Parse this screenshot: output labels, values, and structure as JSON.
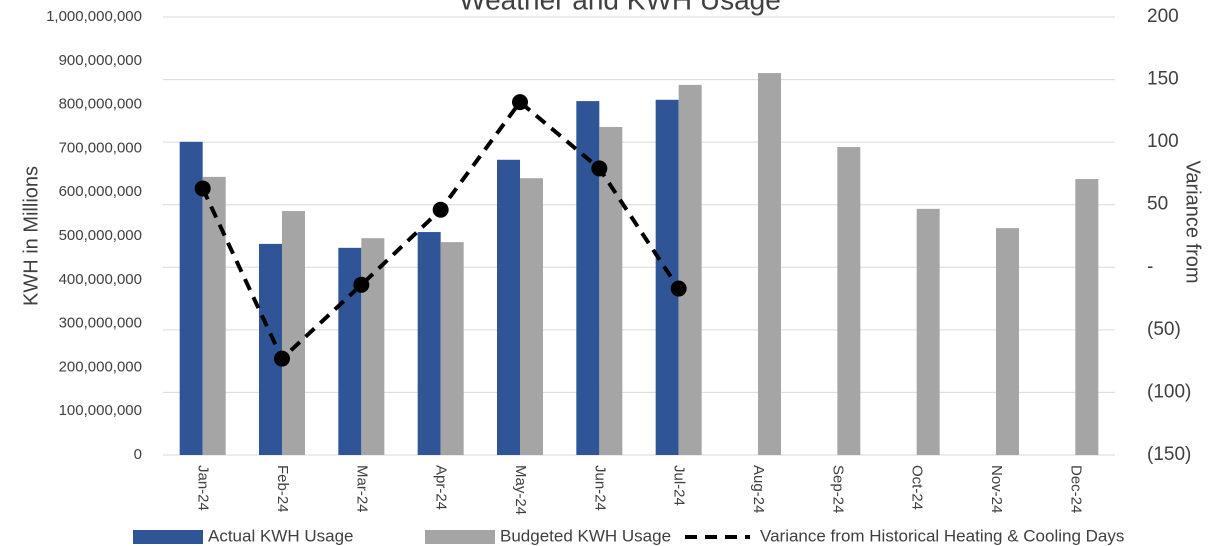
{
  "chart_data": {
    "type": "bar",
    "title": "Weather and KWH Usage",
    "y_label": "KWH in Millions",
    "y2_label": "Variance from",
    "categories": [
      "Jan-24",
      "Feb-24",
      "Mar-24",
      "Apr-24",
      "May-24",
      "Jun-24",
      "Jul-24",
      "Aug-24",
      "Sep-24",
      "Oct-24",
      "Nov-24",
      "Dec-24"
    ],
    "series": [
      {
        "name": "Actual KWH Usage",
        "type": "bar",
        "color": "#2f5597",
        "values": [
          715000000,
          482000000,
          473000000,
          509000000,
          674000000,
          808000000,
          811000000,
          null,
          null,
          null,
          null,
          null
        ]
      },
      {
        "name": "Budgeted KWH Usage",
        "type": "bar",
        "color": "#a5a5a5",
        "values": [
          635000000,
          557000000,
          495000000,
          486000000,
          632000000,
          749000000,
          845000000,
          872000000,
          703000000,
          562000000,
          518000000,
          630000000
        ]
      },
      {
        "name": "Variance from Historical Heating & Cooling Days",
        "type": "line",
        "axis": "y2",
        "color": "#000000",
        "dashed": true,
        "marker": "circle",
        "values": [
          63,
          -73,
          -14,
          46,
          132,
          79,
          -17,
          null,
          null,
          null,
          null,
          null
        ]
      }
    ],
    "ylim": [
      0,
      1000000000
    ],
    "yticks": [
      0,
      {
        "value": 100000000,
        "label": "100,000,000"
      },
      {
        "value": 200000000,
        "label": "200,000,000"
      },
      {
        "value": 300000000,
        "label": "300,000,000"
      },
      {
        "value": 400000000,
        "label": "400,000,000"
      },
      {
        "value": 500000000,
        "label": "500,000,000"
      },
      {
        "value": 600000000,
        "label": "600,000,000"
      },
      {
        "value": 700000000,
        "label": "700,000,000"
      },
      {
        "value": 800000000,
        "label": "800,000,000"
      },
      {
        "value": 900000000,
        "label": "900,000,000"
      },
      {
        "value": 1000000000,
        "label": "1,000,000,000"
      }
    ],
    "y2lim": [
      -150,
      200
    ],
    "y2ticks": [
      {
        "value": -150,
        "label": "(150)"
      },
      {
        "value": -100,
        "label": "(100)"
      },
      {
        "value": -50,
        "label": "(50)"
      },
      {
        "value": 0,
        "label": "-"
      },
      50,
      100,
      150,
      200
    ],
    "grid": "y2",
    "legend": "bottom"
  }
}
